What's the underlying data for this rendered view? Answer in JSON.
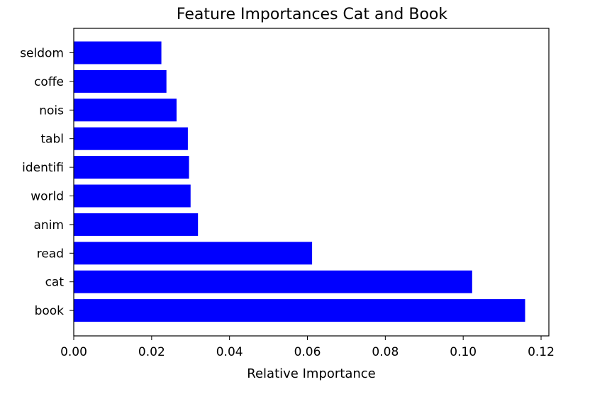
{
  "chart_data": {
    "type": "bar",
    "orientation": "horizontal",
    "title": "Feature Importances Cat and Book",
    "xlabel": "Relative Importance",
    "ylabel": "",
    "categories": [
      "seldom",
      "coffe",
      "nois",
      "tabl",
      "identifi",
      "world",
      "anim",
      "read",
      "cat",
      "book"
    ],
    "values": [
      0.0225,
      0.0238,
      0.0264,
      0.0293,
      0.0296,
      0.03,
      0.0319,
      0.0612,
      0.1023,
      0.1159
    ],
    "xlim": [
      0.0,
      0.122
    ],
    "xticks": [
      0.0,
      0.02,
      0.04,
      0.06,
      0.08,
      0.1,
      0.12
    ],
    "xtick_labels": [
      "0.00",
      "0.02",
      "0.04",
      "0.06",
      "0.08",
      "0.10",
      "0.12"
    ],
    "bar_color": "#0000ff",
    "grid": false,
    "legend": "none"
  }
}
